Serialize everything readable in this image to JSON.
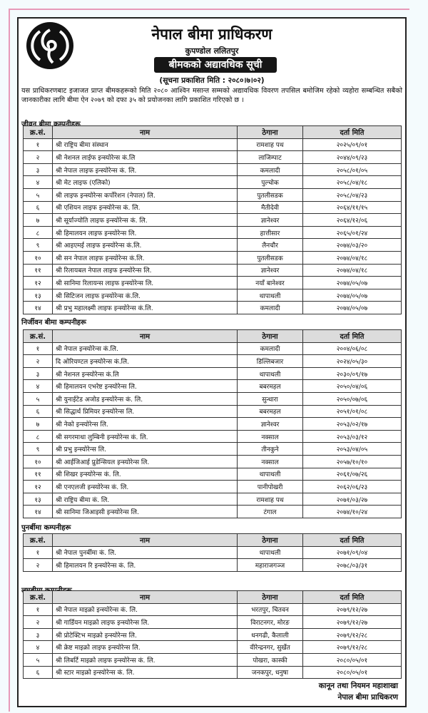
{
  "header": {
    "title": "नेपाल बीमा प्राधिकरण",
    "address": "कुपण्डोल ललितपुर",
    "banner": "बीमकको अद्यावधिक सूची",
    "notice_date": "(सूचना प्रकाशित मिति : २०८०।७।०२)",
    "paragraph": "यस प्राधिकरणबाट इजाजत प्राप्त बीमकहरूको मिति २०८० आश्विन मसान्त सम्मको अद्यावधिक विवरण तपसिल बमोजिम रहेको व्यहोरा सम्बन्धित सबैको जानकारीका लागि बीमा ऐन २०७९ को दफा ३५ को प्रयोजनका लागि प्रकाशित गरिएको छ ।"
  },
  "columns": [
    "क्र.सं.",
    "नाम",
    "ठेगाना",
    "दर्ता मिति"
  ],
  "sections": [
    {
      "heading": "जीवन बीमा कम्पनीहरू",
      "rows": [
        [
          "१",
          "श्री राष्ट्रिय बीमा संस्थान",
          "रामशाह पथ",
          "२०२५/०९/०१"
        ],
        [
          "२",
          "श्री नेशनल लाईफ इन्स्योरेन्स कं.लि",
          "लाजिम्पाट",
          "२०४४/०९/२३"
        ],
        [
          "३",
          "श्री नेपाल लाइफ इन्स्योरेन्स कं. लि.",
          "कमलादी",
          "२०५८/०१/०५"
        ],
        [
          "४",
          "श्री मेट लाइफ (एलिको)",
          "पुल्चोक",
          "२०५८/०४/१८"
        ],
        [
          "५",
          "श्री लाइफ इन्स्योरेन्स कर्पोरेशन (नेपाल) लि.",
          "पुतलीसडक",
          "२०५८/०४/२३"
        ],
        [
          "६",
          "श्री एशियन लाइफ इन्स्योरेन्स कं. लि.",
          "मैतीदेवी",
          "२०६४/११/१५"
        ],
        [
          "७",
          "श्री सूर्याज्योति लाइफ इन्स्योरेन्स कं. लि.",
          "ज्ञानेश्वर",
          "२०६४/१२/०६"
        ],
        [
          "८",
          "श्री हिमालयन लाइफ इन्स्योरेन्स लि.",
          "हात्तीसार",
          "२०६५/०१/२४"
        ],
        [
          "९",
          "श्री आइएमई लाइफ इन्स्योरेन्स कं.लि.",
          "लैनचौर",
          "२०७४/०३/२०"
        ],
        [
          "१०",
          "श्री सन नेपाल लाइफ इन्स्योरेन्स कं.लि.",
          "पुतलीसडक",
          "२०७४/०४/१८"
        ],
        [
          "११",
          "श्री रिलायबल नेपाल लाइफ इन्स्योरेन्स लि.",
          "ज्ञानेश्वर",
          "२०७४/०४/१८"
        ],
        [
          "१२",
          "श्री सानिमा रिलायन्स लाइफ इन्स्योरेन्स लि.",
          "नयाँ बानेश्वर",
          "२०७४/०५/०७"
        ],
        [
          "१३",
          "श्री सिटिजन लाइफ इन्स्योरेन्स कं.लि.",
          "थापाथली",
          "२०७४/०५/०७"
        ],
        [
          "१४",
          "श्री प्रभु महालक्ष्मी लाइफ इन्स्योरेन्स कं.लि.",
          "कमलादी",
          "२०७४/०५/०७"
        ]
      ]
    },
    {
      "heading": "निर्जीवन बीमा कम्पनीहरू",
      "rows": [
        [
          "१",
          "श्री नेपाल इन्स्योरेन्स कं.लि.",
          "कमलादी",
          "२००४/०६/०८"
        ],
        [
          "२",
          "दि ओरियण्टल इन्स्योरेन्स कं.लि.",
          "डिल्लिबजार",
          "२०२४/०५/३०"
        ],
        [
          "३",
          "श्री नेशनल इन्स्योरेन्स कं.लि",
          "थापाथली",
          "२०३०/०९/१७"
        ],
        [
          "४",
          "श्री हिमालयन एभरेष्ट इन्स्योरेन्स लि.",
          "बबरमहल",
          "२०५०/०४/०६"
        ],
        [
          "५",
          "श्री युनाईटेड अजोड इन्स्योरेन्स कं. लि.",
          "सुन्धारा",
          "२०५०/०७/०६"
        ],
        [
          "६",
          "श्री सिद्धार्थ प्रिमियर इन्स्योरेन्स लि.",
          "बबरमहल",
          "२०५१/०१/०८"
        ],
        [
          "७",
          "श्री नेको इन्स्योरेन्स लि.",
          "ज्ञानेश्वर",
          "२०५३/०२/१७"
        ],
        [
          "८",
          "श्री सगरमाथा लुम्बिनी इन्स्योरेन्स कं. लि.",
          "नक्साल",
          "२०५३/०३/१२"
        ],
        [
          "९",
          "श्री प्रभु इन्स्योरेन्स लि.",
          "तीनकुने",
          "२०५३/०४/०५"
        ],
        [
          "१०",
          "श्री आईजिआई प्रुडेन्सियल इन्स्योरेन्स लि.",
          "नक्साल",
          "२०५७/१०/१०"
        ],
        [
          "११",
          "श्री शिखर इन्स्योरेन्स कं. लि.",
          "थापाथली",
          "२०६१/०७/२६"
        ],
        [
          "१२",
          "श्री एनएलजी इन्स्योरेन्स कं. लि.",
          "पानीपोखरी",
          "२०६२/०६/२३"
        ],
        [
          "१३",
          "श्री राष्ट्रिय बीमा कं. लि.",
          "रामशाह पथ",
          "२०७१/०३/२७"
        ],
        [
          "१४",
          "श्री सानिमा जिआइसी इन्स्योरेन्स लि.",
          "टंगाल",
          "२०७४/१०/२४"
        ]
      ]
    },
    {
      "heading": "पुनर्बीमा कम्पनीहरू",
      "rows": [
        [
          "१",
          "श्री नेपाल पुनर्बीमा कं. लि.",
          "थापाथली",
          "२०७१/०९/०४"
        ],
        [
          "२",
          "श्री हिमालयन रि इन्स्योरेन्स कं. लि.",
          "महाराजगञ्ज",
          "२०७८/०३/३१"
        ]
      ]
    },
    {
      "heading": "लघुबीमा कम्पनीहरू",
      "rows": [
        [
          "१",
          "श्री नेपाल माइक्रो इन्स्योरेन्स कं. लि.",
          "भरतपुर, चितवन",
          "२०७९/१२/२७"
        ],
        [
          "२",
          "श्री गार्डियन माइक्रो लाइफ इन्स्योरेन्स लि.",
          "विराटनगर, मोरङ",
          "२०७९/१२/२७"
        ],
        [
          "३",
          "श्री प्रोटेक्टिभ माइक्रो इन्स्योरेन्स लि.",
          "धनगढी, कैलाली",
          "२०७९/१२/२८"
        ],
        [
          "४",
          "श्री क्रेष्ट माइक्रो लाइफ इन्स्योरेन्स लि.",
          "वीरेन्द्रनगर, सुर्खेत",
          "२०७९/१२/२८"
        ],
        [
          "५",
          "श्री लिबर्टि माइक्रो लाइफ इन्स्योरेन्स कं. लि.",
          "पोखरा, कास्की",
          "२०८०/०५/०१"
        ],
        [
          "६",
          "श्री स्टार माइक्रो इन्स्योरेन्स कं. लि.",
          "जनकपुर, धनुषा",
          "२०८०/०५/०१"
        ]
      ]
    }
  ],
  "signature": {
    "line1": "कानून तथा नियमन महाशाखा",
    "line2": "नेपाल बीमा प्राधिकरण"
  },
  "logo": {
    "icon": "nepal-insurance-authority-logo"
  }
}
